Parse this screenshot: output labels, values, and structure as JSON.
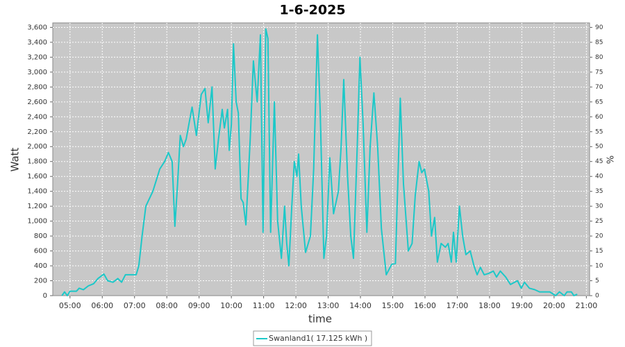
{
  "chart_data": {
    "type": "line",
    "title": "1-6-2025",
    "xlabel": "time",
    "ylabel": "Watt",
    "y2label": "%",
    "x": [
      285,
      290,
      295,
      300,
      312,
      317,
      325,
      334,
      344,
      352,
      363,
      370,
      380,
      389,
      396,
      403,
      412,
      423,
      428,
      434,
      441,
      454,
      467,
      476,
      483,
      490,
      495,
      500,
      505,
      511,
      516,
      521,
      527,
      535,
      544,
      551,
      557,
      564,
      570,
      576,
      583,
      587,
      593,
      596,
      600,
      604,
      609,
      613,
      618,
      622,
      627,
      635,
      641,
      648,
      654,
      659,
      664,
      668,
      673,
      680,
      686,
      693,
      699,
      703,
      707,
      712,
      717,
      722,
      725,
      730,
      738,
      747,
      753,
      760,
      765,
      772,
      777,
      783,
      790,
      799,
      804,
      809,
      816,
      822,
      827,
      834,
      839,
      845,
      852,
      858,
      865,
      872,
      879,
      888,
      898,
      905,
      914,
      920,
      929,
      936,
      942,
      949,
      954,
      959,
      967,
      972,
      978,
      983,
      990,
      998,
      1003,
      1009,
      1013,
      1018,
      1024,
      1030,
      1036,
      1044,
      1051,
      1057,
      1063,
      1070,
      1079,
      1087,
      1093,
      1100,
      1110,
      1119,
      1132,
      1139,
      1145,
      1154,
      1164,
      1173,
      1183,
      1192,
      1203,
      1210,
      1219,
      1224,
      1232,
      1237,
      1243
    ],
    "series": [
      {
        "name": "Swanland1( 17.125 kWh )",
        "color": "#1cc8c8",
        "values": [
          0,
          50,
          0,
          60,
          60,
          100,
          80,
          130,
          160,
          230,
          290,
          200,
          180,
          230,
          180,
          280,
          280,
          280,
          400,
          800,
          1200,
          1400,
          1700,
          1800,
          1920,
          1800,
          930,
          1500,
          2150,
          2000,
          2100,
          2300,
          2530,
          2150,
          2700,
          2780,
          2320,
          2800,
          1700,
          2100,
          2500,
          2250,
          2500,
          1950,
          2300,
          3380,
          2600,
          2450,
          1300,
          1250,
          950,
          2100,
          3150,
          2600,
          3500,
          850,
          3580,
          3450,
          850,
          2600,
          1000,
          500,
          1200,
          700,
          400,
          1150,
          1800,
          1600,
          1900,
          1200,
          580,
          800,
          1700,
          3500,
          2500,
          500,
          800,
          1850,
          1100,
          1400,
          2000,
          2900,
          1600,
          800,
          500,
          2000,
          3200,
          2300,
          850,
          2000,
          2720,
          2000,
          900,
          280,
          420,
          430,
          2650,
          1500,
          600,
          700,
          1350,
          1800,
          1650,
          1700,
          1400,
          800,
          1050,
          450,
          700,
          650,
          700,
          450,
          850,
          450,
          1200,
          800,
          550,
          600,
          400,
          280,
          380,
          280,
          300,
          330,
          250,
          330,
          250,
          150,
          200,
          100,
          180,
          100,
          80,
          50,
          50,
          50,
          0,
          50,
          0,
          50,
          50,
          0,
          20
        ]
      }
    ],
    "xlim": [
      268,
      1266
    ],
    "xticks": [
      {
        "value": 300,
        "label": "05:00"
      },
      {
        "value": 360,
        "label": "06:00"
      },
      {
        "value": 420,
        "label": "07:00"
      },
      {
        "value": 480,
        "label": "08:00"
      },
      {
        "value": 540,
        "label": "09:00"
      },
      {
        "value": 600,
        "label": "10:00"
      },
      {
        "value": 660,
        "label": "11:00"
      },
      {
        "value": 720,
        "label": "12:00"
      },
      {
        "value": 780,
        "label": "13:00"
      },
      {
        "value": 840,
        "label": "14:00"
      },
      {
        "value": 900,
        "label": "15:00"
      },
      {
        "value": 960,
        "label": "16:00"
      },
      {
        "value": 1020,
        "label": "17:00"
      },
      {
        "value": 1080,
        "label": "18:00"
      },
      {
        "value": 1140,
        "label": "19:00"
      },
      {
        "value": 1200,
        "label": "20:00"
      },
      {
        "value": 1260,
        "label": "21:00"
      }
    ],
    "ylim": [
      0,
      3660
    ],
    "yticks": [
      0,
      200,
      400,
      600,
      800,
      {
        "value": 1000,
        "label": "1,000"
      },
      {
        "value": 1200,
        "label": "1,200"
      },
      {
        "value": 1400,
        "label": "1,400"
      },
      {
        "value": 1600,
        "label": "1,600"
      },
      {
        "value": 1800,
        "label": "1,800"
      },
      {
        "value": 2000,
        "label": "2,000"
      },
      {
        "value": 2200,
        "label": "2,200"
      },
      {
        "value": 2400,
        "label": "2,400"
      },
      {
        "value": 2600,
        "label": "2,600"
      },
      {
        "value": 2800,
        "label": "2,800"
      },
      {
        "value": 3000,
        "label": "3,000"
      },
      {
        "value": 3200,
        "label": "3,200"
      },
      {
        "value": 3400,
        "label": "3,400"
      },
      {
        "value": 3600,
        "label": "3,600"
      }
    ],
    "y2lim": [
      0,
      91.5
    ],
    "y2ticks": [
      0,
      5,
      10,
      15,
      20,
      25,
      30,
      35,
      40,
      45,
      50,
      55,
      60,
      65,
      70,
      75,
      80,
      85,
      90
    ],
    "grid": true,
    "legend": "bottom"
  }
}
